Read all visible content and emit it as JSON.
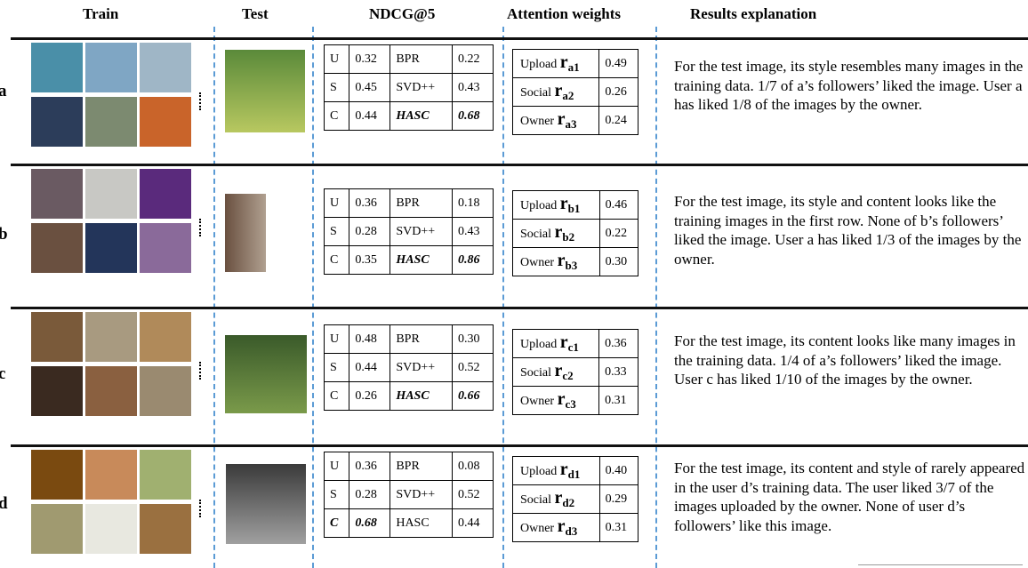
{
  "header": {
    "train": "Train",
    "test": "Test",
    "ndcg": "NDCG@5",
    "attention": "Attention weights",
    "explanation": "Results explanation"
  },
  "rows": [
    {
      "label": "a",
      "ndcg": [
        [
          "U",
          "0.32",
          "BPR",
          "0.22"
        ],
        [
          "S",
          "0.45",
          "SVD++",
          "0.43"
        ],
        [
          "C",
          "0.44",
          "HASC",
          "0.68"
        ]
      ],
      "bold_cells": [
        [
          2,
          2
        ],
        [
          2,
          3
        ]
      ],
      "attention": [
        {
          "label": "Upload",
          "symbol": "r",
          "sub": "a1",
          "value": "0.49"
        },
        {
          "label": "Social",
          "symbol": "r",
          "sub": "a2",
          "value": "0.26"
        },
        {
          "label": "Owner",
          "symbol": "r",
          "sub": "a3",
          "value": "0.24"
        }
      ],
      "explanation": "For the test image, its style resembles many images in the training data. 1/7 of a’s followers’ liked the image. User a has liked 1/8 of the images by the owner."
    },
    {
      "label": "b",
      "ndcg": [
        [
          "U",
          "0.36",
          "BPR",
          "0.18"
        ],
        [
          "S",
          "0.28",
          "SVD++",
          "0.43"
        ],
        [
          "C",
          "0.35",
          "HASC",
          "0.86"
        ]
      ],
      "bold_cells": [
        [
          2,
          2
        ],
        [
          2,
          3
        ]
      ],
      "attention": [
        {
          "label": "Upload",
          "symbol": "r",
          "sub": "b1",
          "value": "0.46"
        },
        {
          "label": "Social",
          "symbol": "r",
          "sub": "b2",
          "value": "0.22"
        },
        {
          "label": "Owner",
          "symbol": "r",
          "sub": "b3",
          "value": "0.30"
        }
      ],
      "explanation": "For the test image, its style and content looks like the training images in the first row. None of b’s followers’ liked the image. User a has liked 1/3 of the images by the owner."
    },
    {
      "label": "c",
      "ndcg": [
        [
          "U",
          "0.48",
          "BPR",
          "0.30"
        ],
        [
          "S",
          "0.44",
          "SVD++",
          "0.52"
        ],
        [
          "C",
          "0.26",
          "HASC",
          "0.66"
        ]
      ],
      "bold_cells": [
        [
          2,
          2
        ],
        [
          2,
          3
        ]
      ],
      "attention": [
        {
          "label": "Upload",
          "symbol": "r",
          "sub": "c1",
          "value": "0.36"
        },
        {
          "label": "Social",
          "symbol": "r",
          "sub": "c2",
          "value": "0.33"
        },
        {
          "label": "Owner",
          "symbol": "r",
          "sub": "c3",
          "value": "0.31"
        }
      ],
      "explanation": "For the test image, its content looks like many images in the training data. 1/4 of a’s followers’ liked the image. User c has liked 1/10 of the images by the owner."
    },
    {
      "label": "d",
      "ndcg": [
        [
          "U",
          "0.36",
          "BPR",
          "0.08"
        ],
        [
          "S",
          "0.28",
          "SVD++",
          "0.52"
        ],
        [
          "C",
          "0.68",
          "HASC",
          "0.44"
        ]
      ],
      "bold_cells": [
        [
          2,
          0
        ],
        [
          2,
          1
        ]
      ],
      "attention": [
        {
          "label": "Upload",
          "symbol": "r",
          "sub": "d1",
          "value": "0.40"
        },
        {
          "label": "Social",
          "symbol": "r",
          "sub": "d2",
          "value": "0.29"
        },
        {
          "label": "Owner",
          "symbol": "r",
          "sub": "d3",
          "value": "0.31"
        }
      ],
      "explanation": "For the test image, its content and style of rarely appeared in the user d’s training data. The user liked 3/7 of the images uploaded by the owner. None of user d’s followers’ like this image."
    }
  ]
}
